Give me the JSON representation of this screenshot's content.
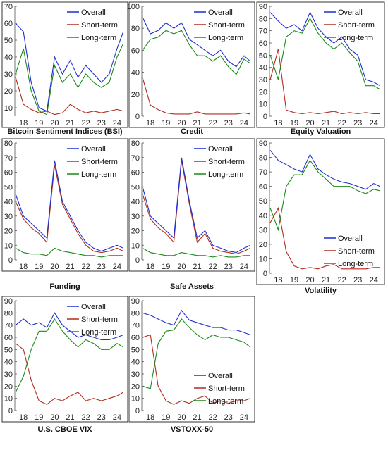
{
  "series_colors": {
    "Overall": "#1f2fd0",
    "Short-term": "#b22b1e",
    "Long-term": "#1a8a1a"
  },
  "chart_data": [
    {
      "type": "line",
      "caption": "Bitcoin Sentiment Indices (BSI)",
      "ylim": [
        5,
        70
      ],
      "yticks": [
        10,
        20,
        30,
        40,
        50,
        60,
        70
      ],
      "xticks": [
        "18",
        "19",
        "20",
        "21",
        "22",
        "23",
        "24"
      ],
      "legend": "top-right",
      "x": [
        2017.5,
        2018,
        2018.5,
        2019,
        2019.5,
        2020,
        2020.5,
        2021,
        2021.5,
        2022,
        2022.5,
        2023,
        2023.5,
        2024,
        2024.4
      ],
      "series": [
        {
          "name": "Overall",
          "values": [
            60,
            55,
            25,
            10,
            8,
            40,
            30,
            38,
            28,
            35,
            30,
            25,
            30,
            45,
            55
          ]
        },
        {
          "name": "Short-term",
          "values": [
            28,
            12,
            9,
            7,
            8,
            6,
            7,
            12,
            9,
            7,
            8,
            7,
            8,
            9,
            8
          ]
        },
        {
          "name": "Long-term",
          "values": [
            30,
            45,
            20,
            8,
            6,
            35,
            25,
            30,
            22,
            30,
            25,
            22,
            25,
            40,
            48
          ]
        }
      ]
    },
    {
      "type": "line",
      "caption": "Credit",
      "ylim": [
        0,
        100
      ],
      "yticks": [
        0,
        20,
        40,
        60,
        80,
        100
      ],
      "xticks": [
        "18",
        "19",
        "20",
        "21",
        "22",
        "23",
        "24"
      ],
      "legend": "top-right",
      "x": [
        2017.5,
        2018,
        2018.5,
        2019,
        2019.5,
        2020,
        2020.5,
        2021,
        2021.5,
        2022,
        2022.5,
        2023,
        2023.5,
        2024,
        2024.4
      ],
      "series": [
        {
          "name": "Overall",
          "values": [
            90,
            75,
            78,
            85,
            80,
            85,
            70,
            65,
            60,
            55,
            60,
            50,
            45,
            55,
            50
          ]
        },
        {
          "name": "Short-term",
          "values": [
            35,
            10,
            6,
            3,
            2,
            2,
            2,
            4,
            2,
            2,
            2,
            2,
            2,
            3,
            2
          ]
        },
        {
          "name": "Long-term",
          "values": [
            60,
            70,
            72,
            78,
            75,
            78,
            65,
            55,
            55,
            50,
            55,
            45,
            38,
            52,
            48
          ]
        }
      ]
    },
    {
      "type": "line",
      "caption": "Equity Valuation",
      "ylim": [
        0,
        90
      ],
      "yticks": [
        0,
        10,
        20,
        30,
        40,
        50,
        60,
        70,
        80,
        90
      ],
      "xticks": [
        "18",
        "19",
        "20",
        "21",
        "22",
        "23",
        "24"
      ],
      "legend": "top-right",
      "x": [
        2017.5,
        2018,
        2018.5,
        2019,
        2019.5,
        2020,
        2020.5,
        2021,
        2021.5,
        2022,
        2022.5,
        2023,
        2023.5,
        2024,
        2024.4
      ],
      "series": [
        {
          "name": "Overall",
          "values": [
            85,
            78,
            72,
            75,
            70,
            85,
            72,
            65,
            60,
            65,
            55,
            50,
            30,
            28,
            25
          ]
        },
        {
          "name": "Short-term",
          "values": [
            30,
            55,
            5,
            3,
            2,
            3,
            2,
            3,
            4,
            2,
            3,
            2,
            3,
            2,
            2
          ]
        },
        {
          "name": "Long-term",
          "values": [
            50,
            30,
            65,
            70,
            68,
            80,
            68,
            60,
            55,
            60,
            52,
            45,
            25,
            25,
            22
          ]
        }
      ]
    },
    {
      "type": "line",
      "caption": "Funding",
      "ylim": [
        0,
        80
      ],
      "yticks": [
        0,
        10,
        20,
        30,
        40,
        50,
        60,
        70,
        80
      ],
      "xticks": [
        "18",
        "19",
        "20",
        "21",
        "22",
        "23",
        "24"
      ],
      "legend": "top-right",
      "x": [
        2017.5,
        2018,
        2018.5,
        2019,
        2019.5,
        2020,
        2020.5,
        2021,
        2021.5,
        2022,
        2022.5,
        2023,
        2023.5,
        2024,
        2024.4
      ],
      "series": [
        {
          "name": "Overall",
          "values": [
            45,
            30,
            25,
            20,
            15,
            68,
            40,
            30,
            20,
            12,
            8,
            6,
            8,
            10,
            8
          ]
        },
        {
          "name": "Short-term",
          "values": [
            40,
            28,
            22,
            18,
            12,
            65,
            38,
            28,
            18,
            10,
            6,
            5,
            6,
            8,
            6
          ]
        },
        {
          "name": "Long-term",
          "values": [
            8,
            5,
            4,
            4,
            3,
            8,
            6,
            5,
            4,
            3,
            3,
            2,
            3,
            3,
            3
          ]
        }
      ]
    },
    {
      "type": "line",
      "caption": "Safe Assets",
      "ylim": [
        0,
        80
      ],
      "yticks": [
        0,
        10,
        20,
        30,
        40,
        50,
        60,
        70,
        80
      ],
      "xticks": [
        "18",
        "19",
        "20",
        "21",
        "22",
        "23",
        "24"
      ],
      "legend": "top-right",
      "x": [
        2017.5,
        2018,
        2018.5,
        2019,
        2019.5,
        2020,
        2020.5,
        2021,
        2021.5,
        2022,
        2022.5,
        2023,
        2023.5,
        2024,
        2024.4
      ],
      "series": [
        {
          "name": "Overall",
          "values": [
            50,
            30,
            25,
            20,
            15,
            70,
            40,
            15,
            20,
            10,
            8,
            6,
            5,
            8,
            10
          ]
        },
        {
          "name": "Short-term",
          "values": [
            45,
            28,
            22,
            18,
            12,
            68,
            38,
            12,
            18,
            8,
            6,
            5,
            4,
            6,
            8
          ]
        },
        {
          "name": "Long-term",
          "values": [
            8,
            5,
            4,
            3,
            3,
            5,
            4,
            3,
            3,
            2,
            3,
            2,
            2,
            3,
            3
          ]
        }
      ]
    },
    {
      "type": "line",
      "caption": "Volatility",
      "ylim": [
        0,
        90
      ],
      "yticks": [
        0,
        10,
        20,
        30,
        40,
        50,
        60,
        70,
        80,
        90
      ],
      "xticks": [
        "18",
        "19",
        "20",
        "21",
        "22",
        "23",
        "24"
      ],
      "legend": "bottom-right",
      "x": [
        2017.5,
        2018,
        2018.5,
        2019,
        2019.5,
        2020,
        2020.5,
        2021,
        2021.5,
        2022,
        2022.5,
        2023,
        2023.5,
        2024,
        2024.4
      ],
      "series": [
        {
          "name": "Overall",
          "values": [
            85,
            78,
            75,
            72,
            70,
            82,
            72,
            68,
            65,
            63,
            62,
            60,
            58,
            62,
            60
          ]
        },
        {
          "name": "Short-term",
          "values": [
            35,
            45,
            15,
            5,
            3,
            4,
            3,
            5,
            6,
            3,
            3,
            3,
            3,
            4,
            4
          ]
        },
        {
          "name": "Long-term",
          "values": [
            45,
            30,
            60,
            68,
            68,
            78,
            70,
            65,
            60,
            60,
            60,
            57,
            55,
            58,
            57
          ]
        }
      ]
    },
    {
      "type": "line",
      "caption": "U.S. CBOE VIX",
      "ylim": [
        0,
        90
      ],
      "yticks": [
        0,
        10,
        20,
        30,
        40,
        50,
        60,
        70,
        80,
        90
      ],
      "xticks": [
        "18",
        "19",
        "20",
        "21",
        "22",
        "23",
        "24"
      ],
      "legend": "top-right",
      "x": [
        2017.5,
        2018,
        2018.5,
        2019,
        2019.5,
        2020,
        2020.5,
        2021,
        2021.5,
        2022,
        2022.5,
        2023,
        2023.5,
        2024,
        2024.4
      ],
      "series": [
        {
          "name": "Overall",
          "values": [
            70,
            75,
            70,
            72,
            68,
            80,
            70,
            65,
            60,
            62,
            60,
            58,
            58,
            60,
            62
          ]
        },
        {
          "name": "Short-term",
          "values": [
            55,
            50,
            25,
            8,
            5,
            10,
            8,
            12,
            15,
            8,
            10,
            8,
            10,
            12,
            15
          ]
        },
        {
          "name": "Long-term",
          "values": [
            15,
            28,
            50,
            65,
            65,
            75,
            65,
            58,
            52,
            58,
            55,
            50,
            50,
            55,
            52
          ]
        }
      ]
    },
    {
      "type": "line",
      "caption": "VSTOXX-50",
      "ylim": [
        0,
        90
      ],
      "yticks": [
        0,
        10,
        20,
        30,
        40,
        50,
        60,
        70,
        80,
        90
      ],
      "xticks": [
        "18",
        "19",
        "20",
        "21",
        "22",
        "23",
        "24"
      ],
      "legend": "bottom-right",
      "x": [
        2017.5,
        2018,
        2018.5,
        2019,
        2019.5,
        2020,
        2020.5,
        2021,
        2021.5,
        2022,
        2022.5,
        2023,
        2023.5,
        2024,
        2024.4
      ],
      "series": [
        {
          "name": "Overall",
          "values": [
            80,
            78,
            75,
            72,
            70,
            82,
            74,
            72,
            70,
            68,
            68,
            66,
            66,
            64,
            62
          ]
        },
        {
          "name": "Short-term",
          "values": [
            60,
            62,
            20,
            8,
            5,
            8,
            6,
            10,
            12,
            6,
            8,
            6,
            8,
            8,
            10
          ]
        },
        {
          "name": "Long-term",
          "values": [
            20,
            18,
            55,
            65,
            66,
            75,
            68,
            62,
            58,
            62,
            60,
            60,
            58,
            56,
            52
          ]
        }
      ]
    }
  ]
}
